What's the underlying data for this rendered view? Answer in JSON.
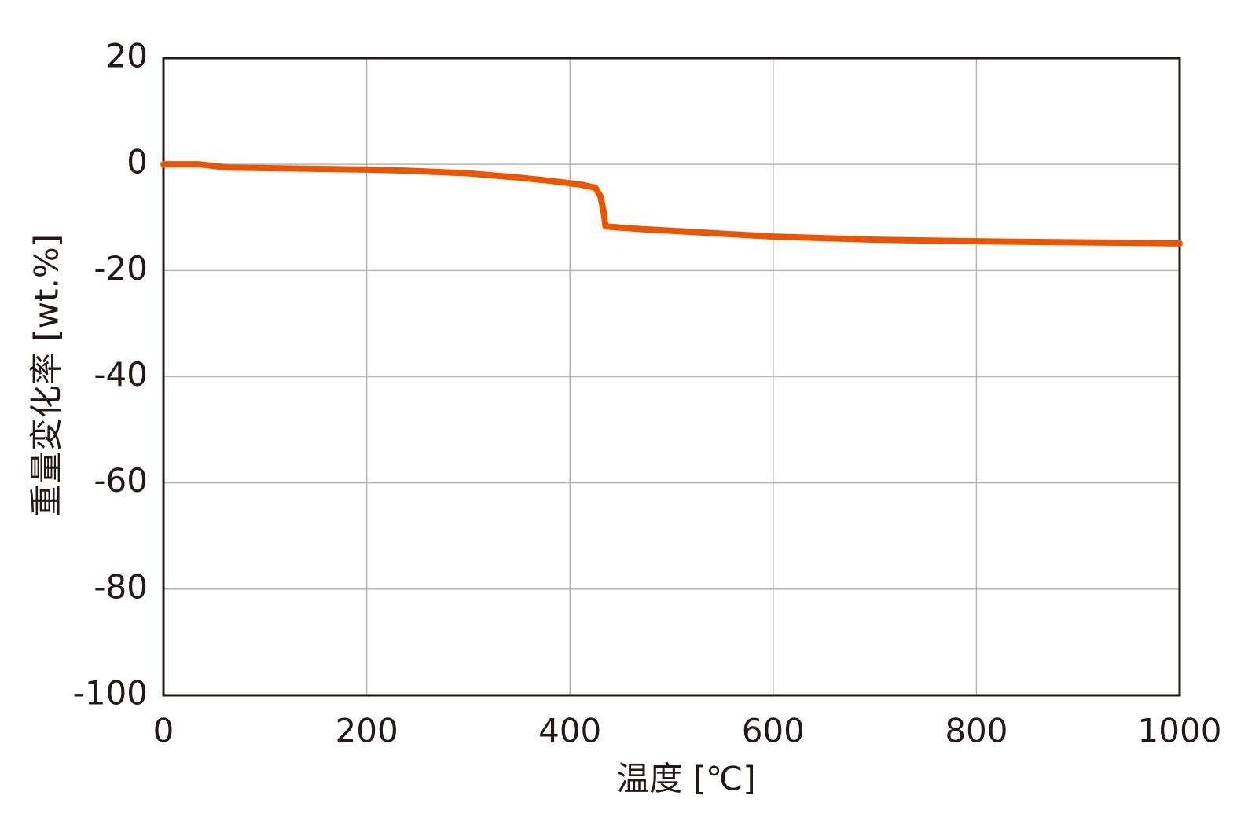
{
  "chart_data": {
    "type": "line",
    "xlabel": "温度 [℃]",
    "ylabel": "重量変化率 [wt.%]",
    "x": [
      0,
      35,
      63,
      200,
      240,
      300,
      350,
      380,
      410,
      425,
      430,
      433,
      435,
      470,
      600,
      700,
      800,
      1000
    ],
    "series": [
      {
        "name": "重量変化率",
        "color": "#ea5504",
        "values": [
          0,
          0,
          -0.6,
          -1.0,
          -1.2,
          -1.7,
          -2.5,
          -3.1,
          -3.8,
          -4.4,
          -6.0,
          -8.7,
          -11.7,
          -12.2,
          -13.6,
          -14.2,
          -14.5,
          -14.9
        ]
      }
    ],
    "xlim": [
      0,
      1000
    ],
    "xticks": [
      0,
      200,
      400,
      600,
      800,
      1000
    ],
    "ylim": [
      -100,
      20
    ],
    "yticks": [
      -100,
      -80,
      -60,
      -40,
      -20,
      0,
      20
    ],
    "grid": true
  }
}
